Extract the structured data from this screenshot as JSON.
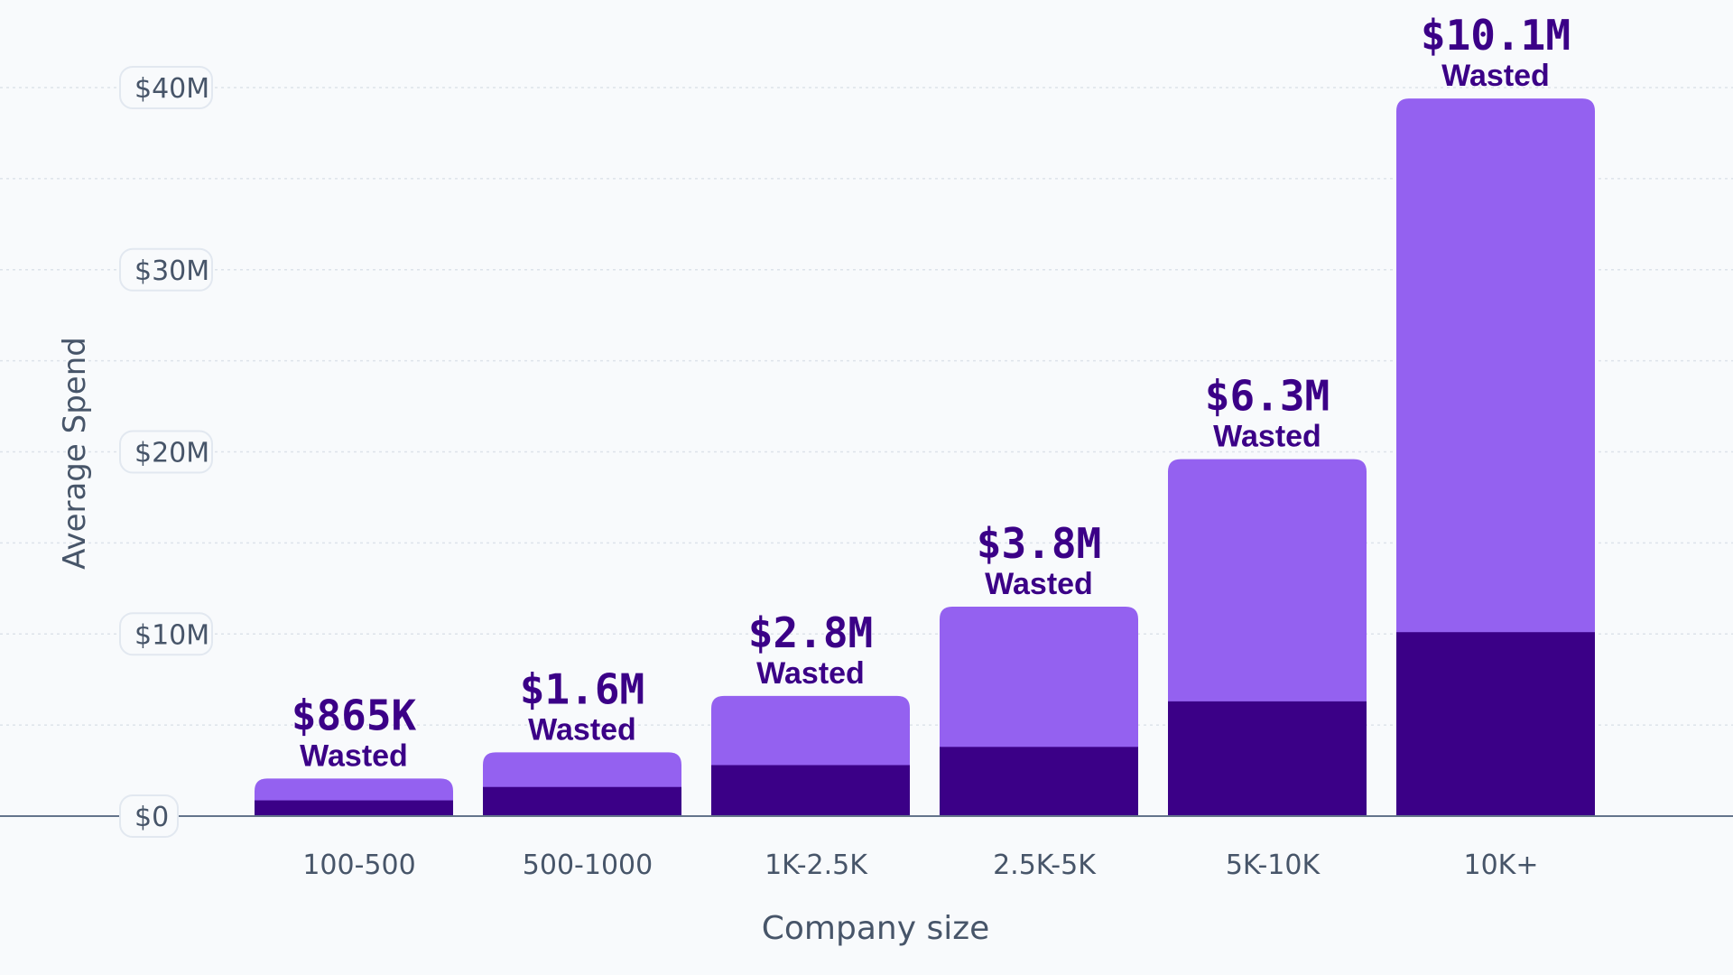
{
  "chart_data": {
    "type": "bar",
    "stacked": true,
    "title": "",
    "xlabel": "Company size",
    "ylabel": "Average Spend",
    "categories": [
      "100-500",
      "500-1000",
      "1K-2.5K",
      "2.5K-5K",
      "5K-10K",
      "10K+"
    ],
    "series": [
      {
        "values": [
          0.865,
          1.6,
          2.8,
          3.8,
          6.3,
          10.1
        ],
        "color": "#3b0087"
      },
      {
        "values": [
          1.2,
          1.9,
          3.8,
          7.7,
          13.3,
          29.3
        ],
        "color": "#9461f0"
      }
    ],
    "total_values": [
      2.065,
      3.5,
      6.6,
      11.5,
      19.6,
      39.4
    ],
    "data_labels": [
      {
        "value": "$865K",
        "note": "Wasted"
      },
      {
        "value": "$1.6M",
        "note": "Wasted"
      },
      {
        "value": "$2.8M",
        "note": "Wasted"
      },
      {
        "value": "$3.8M",
        "note": "Wasted"
      },
      {
        "value": "$6.3M",
        "note": "Wasted"
      },
      {
        "value": "$10.1M",
        "note": "Wasted"
      }
    ],
    "y_ticks": [
      {
        "value": 0,
        "label": "$0"
      },
      {
        "value": 10,
        "label": "$10M"
      },
      {
        "value": 20,
        "label": "$20M"
      },
      {
        "value": 30,
        "label": "$30M"
      },
      {
        "value": 40,
        "label": "$40M"
      }
    ],
    "ylim": [
      0,
      40
    ],
    "grid": true,
    "legend": "none"
  }
}
